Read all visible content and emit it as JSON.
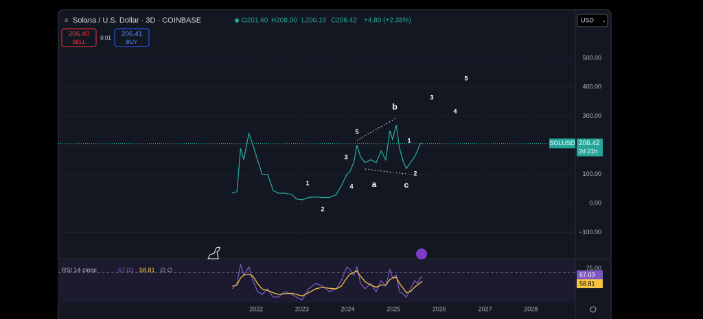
{
  "header": {
    "symbol": "Solana / U.S. Dollar · 3D · COINBASE",
    "open": "O201.60",
    "high": "H208.00",
    "low": "L200.10",
    "close": "C206.42",
    "change": "+4.80 (+2.38%)"
  },
  "trade": {
    "sell_price": "206.40",
    "sell": "SELL",
    "spread": "0.01",
    "buy_price": "206.41",
    "buy": "BUY"
  },
  "currency": "USD",
  "price_label": {
    "symbol": "SOLUSD",
    "countdown": "2d 21h"
  },
  "rsi_legend": {
    "title": "RSI 14 close",
    "extra": "∅ ∅"
  },
  "annotations": [
    "1",
    "2",
    "3",
    "4",
    "5",
    "a",
    "b",
    "c",
    "1",
    "2",
    "3",
    "4",
    "5"
  ],
  "chart_data": [
    {
      "type": "line",
      "color": "#26a69a",
      "x": [
        2021.48,
        2021.58,
        2021.66,
        2021.73,
        2021.84,
        2021.93,
        2022.03,
        2022.13,
        2022.25,
        2022.37,
        2022.48,
        2022.63,
        2022.78,
        2022.88,
        2023.0,
        2023.15,
        2023.3,
        2023.45,
        2023.6,
        2023.75,
        2023.86,
        2023.98,
        2024.05,
        2024.13,
        2024.2,
        2024.28,
        2024.38,
        2024.5,
        2024.62,
        2024.73,
        2024.83,
        2024.92,
        2024.98,
        2025.06,
        2025.13,
        2025.22,
        2025.28,
        2025.37,
        2025.46,
        2025.52,
        2025.58,
        2025.63
      ],
      "values": [
        35,
        40,
        190,
        150,
        240,
        200,
        150,
        100,
        100,
        45,
        35,
        35,
        30,
        15,
        12,
        20,
        22,
        20,
        20,
        30,
        60,
        100,
        110,
        140,
        200,
        160,
        140,
        150,
        140,
        180,
        150,
        250,
        220,
        270,
        190,
        140,
        120,
        140,
        160,
        180,
        205,
        206.42
      ],
      "xlim": [
        2017.68,
        2028.97
      ],
      "xticks": [
        2022,
        2023,
        2024,
        2025,
        2026,
        2027,
        2028
      ],
      "ylim": [
        -184,
        606
      ],
      "yticks": [
        {
          "value": -100,
          "label": "−100.00"
        },
        {
          "value": 0,
          "label": "0.00"
        },
        {
          "value": 100,
          "label": "100.00"
        },
        {
          "value": 200,
          "label": "200.00"
        },
        {
          "value": 300,
          "label": "300.00"
        },
        {
          "value": 400,
          "label": "400.00"
        },
        {
          "value": 500,
          "label": "500.00"
        }
      ]
    },
    {
      "type": "line",
      "x": [
        2021.48,
        2021.58,
        2021.66,
        2021.73,
        2021.84,
        2021.93,
        2022.03,
        2022.13,
        2022.25,
        2022.37,
        2022.48,
        2022.63,
        2022.78,
        2022.88,
        2023.0,
        2023.15,
        2023.3,
        2023.45,
        2023.6,
        2023.75,
        2023.86,
        2023.98,
        2024.05,
        2024.13,
        2024.2,
        2024.28,
        2024.38,
        2024.5,
        2024.62,
        2024.73,
        2024.83,
        2024.92,
        2024.98,
        2025.06,
        2025.13,
        2025.22,
        2025.28,
        2025.37,
        2025.46,
        2025.52,
        2025.58,
        2025.63
      ],
      "xlim": [
        2017.68,
        2028.97
      ],
      "ylim": [
        22.5,
        95
      ],
      "yticks": [
        {
          "value": 75,
          "label": "75.00"
        }
      ],
      "series": [
        {
          "name": "RSI",
          "color": "#7e57c2",
          "values": [
            45,
            55,
            90,
            70,
            85,
            60,
            40,
            35,
            45,
            30,
            30,
            40,
            35,
            30,
            25,
            45,
            55,
            50,
            40,
            45,
            60,
            85,
            80,
            70,
            85,
            55,
            45,
            55,
            40,
            60,
            50,
            80,
            65,
            70,
            40,
            35,
            30,
            45,
            60,
            55,
            65,
            67.03
          ]
        },
        {
          "name": "MA",
          "color": "#f5c542",
          "values": [
            50,
            52,
            65,
            70,
            72,
            68,
            55,
            45,
            42,
            38,
            35,
            36,
            37,
            35,
            32,
            38,
            45,
            48,
            46,
            45,
            50,
            65,
            72,
            75,
            78,
            68,
            58,
            52,
            48,
            52,
            52,
            62,
            65,
            66,
            55,
            45,
            38,
            40,
            48,
            52,
            56,
            58.81
          ]
        }
      ]
    }
  ]
}
